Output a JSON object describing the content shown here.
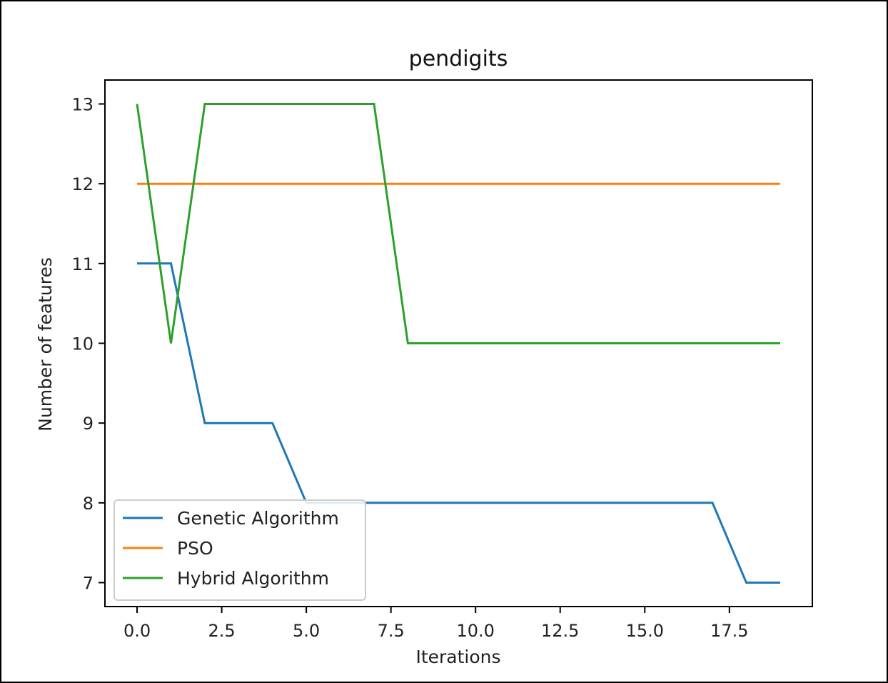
{
  "chart_data": {
    "type": "line",
    "title": "pendigits",
    "xlabel": "Iterations",
    "ylabel": "Number of features",
    "xlim": [
      -0.95,
      19.95
    ],
    "ylim": [
      6.7,
      13.3
    ],
    "xticks": [
      0.0,
      2.5,
      5.0,
      7.5,
      10.0,
      12.5,
      15.0,
      17.5
    ],
    "xtick_labels": [
      "0.0",
      "2.5",
      "5.0",
      "7.5",
      "10.0",
      "12.5",
      "15.0",
      "17.5"
    ],
    "yticks": [
      7,
      8,
      9,
      10,
      11,
      12,
      13
    ],
    "ytick_labels": [
      "7",
      "8",
      "9",
      "10",
      "11",
      "12",
      "13"
    ],
    "grid": false,
    "legend_position": "lower-left",
    "x": [
      0,
      1,
      2,
      3,
      4,
      5,
      6,
      7,
      8,
      9,
      10,
      11,
      12,
      13,
      14,
      15,
      16,
      17,
      18,
      19
    ],
    "series": [
      {
        "name": "Genetic Algorithm",
        "color": "#1f77b4",
        "values": [
          11,
          11,
          9,
          9,
          9,
          8,
          8,
          8,
          8,
          8,
          8,
          8,
          8,
          8,
          8,
          8,
          8,
          8,
          7,
          7
        ]
      },
      {
        "name": "PSO",
        "color": "#ff7f0e",
        "values": [
          12,
          12,
          12,
          12,
          12,
          12,
          12,
          12,
          12,
          12,
          12,
          12,
          12,
          12,
          12,
          12,
          12,
          12,
          12,
          12
        ]
      },
      {
        "name": "Hybrid Algorithm",
        "color": "#2ca02c",
        "values": [
          13,
          10,
          13,
          13,
          13,
          13,
          13,
          13,
          10,
          10,
          10,
          10,
          10,
          10,
          10,
          10,
          10,
          10,
          10,
          10
        ]
      }
    ]
  }
}
